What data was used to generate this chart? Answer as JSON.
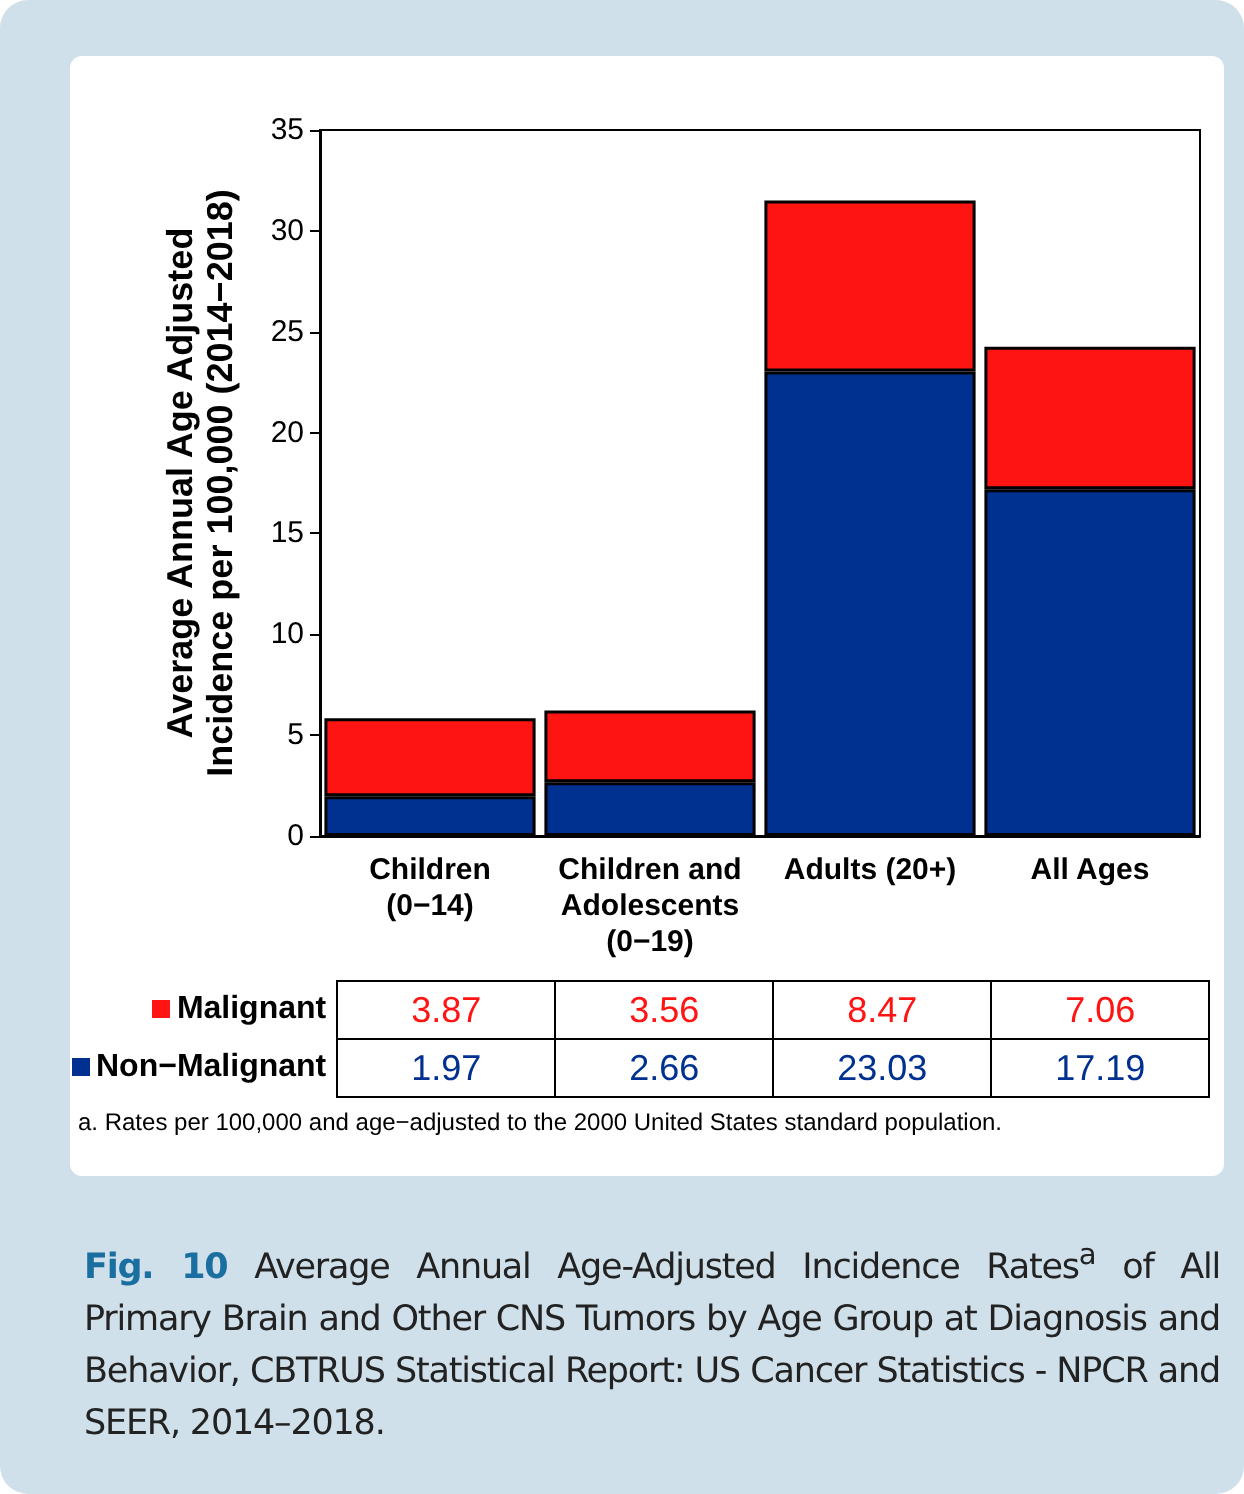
{
  "chart_data": {
    "type": "bar",
    "title": "Fig. 10",
    "subtitle": "Average Annual Age-Adjusted Incidence Rates$^{a}$ of All Primary Brain and Other CNS Tumors by Age Group at Diagnosis and Behavior, CBTRUS Statistical Report: US Cancer Statistics - NPCR and SEER, 2014–2018.",
    "ylabel": "Average Annual Age Adjusted\nIncidence per 100,000 (2014−2018)",
    "annotations": [
      "a. Rates per 100,000 and age−adjusted to the 2000 United States standard population."
    ],
    "categories": [
      "Children\n(0−14)",
      "Children and\nAdolescents\n(0−19)",
      "Adults (20+)",
      "All Ages"
    ],
    "stacked": true,
    "data_labels": true,
    "grid": false,
    "legend": "bottom left",
    "ylim": [
      0,
      35
    ],
    "yticks": [
      0,
      5,
      10,
      15,
      20,
      25,
      30,
      35
    ],
    "series": [
      {
        "name": "Non−Malignant",
        "color": "#003090",
        "values": [
          1.97,
          2.66,
          23.03,
          17.19
        ]
      },
      {
        "name": "Malignant",
        "color": "#ff1414",
        "values": [
          3.87,
          3.56,
          8.47,
          7.06
        ]
      }
    ]
  }
}
